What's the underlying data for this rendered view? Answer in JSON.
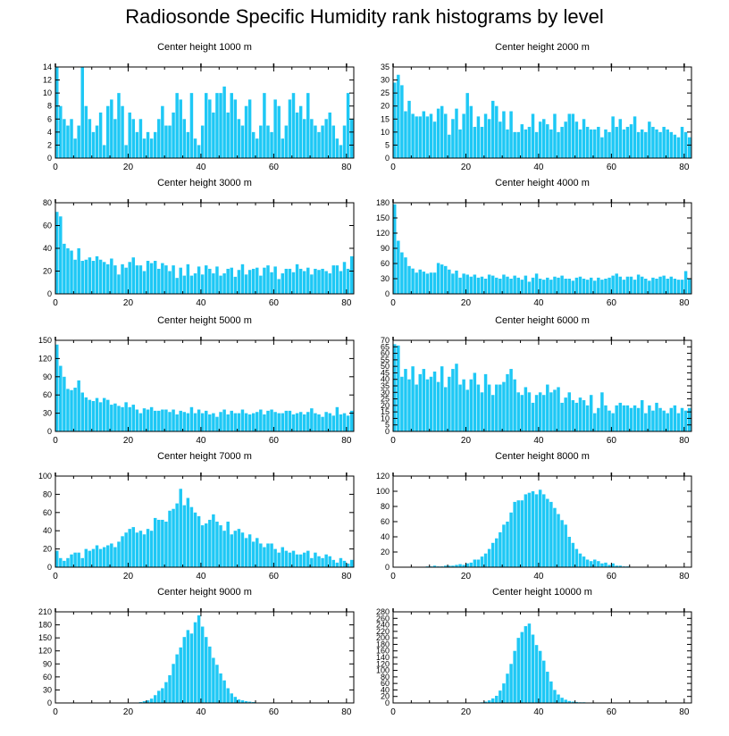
{
  "figure_title": "Radiosonde Specific Humidity rank histograms by level",
  "chart_data": [
    {
      "type": "bar",
      "title": "Center height 1000 m",
      "xlim": [
        0,
        82
      ],
      "ylim": [
        0,
        14
      ],
      "xticks": [
        0,
        20,
        40,
        60,
        80
      ],
      "yticks": [
        0,
        2,
        4,
        6,
        8,
        10,
        12,
        14
      ],
      "bar_color": "#1ec8f5",
      "values": [
        14,
        8,
        6,
        5,
        6,
        3,
        5,
        14,
        8,
        6,
        4,
        5,
        7,
        2,
        8,
        9,
        6,
        10,
        8,
        2,
        7,
        6,
        4,
        6,
        3,
        4,
        3,
        4,
        6,
        8,
        5,
        5,
        7,
        10,
        9,
        6,
        4,
        10,
        3,
        2,
        5,
        10,
        9,
        7,
        10,
        10,
        11,
        7,
        10,
        9,
        6,
        5,
        8,
        9,
        4,
        3,
        5,
        10,
        5,
        4,
        9,
        8,
        3,
        5,
        9,
        10,
        7,
        8,
        6,
        10,
        6,
        5,
        4,
        5,
        6,
        7,
        5,
        3,
        2,
        5,
        10,
        6,
        2
      ],
      "start_x": 0
    },
    {
      "type": "bar",
      "title": "Center height 2000 m",
      "xlim": [
        0,
        82
      ],
      "ylim": [
        0,
        35
      ],
      "xticks": [
        0,
        20,
        40,
        60,
        80
      ],
      "yticks": [
        0,
        5,
        10,
        15,
        20,
        25,
        30,
        35
      ],
      "bar_color": "#1ec8f5",
      "values": [
        29,
        32,
        28,
        18,
        22,
        17,
        16,
        16,
        18,
        16,
        17,
        14,
        19,
        20,
        17,
        9,
        15,
        19,
        11,
        17,
        25,
        20,
        12,
        16,
        12,
        17,
        15,
        22,
        20,
        14,
        18,
        11,
        18,
        10,
        10,
        13,
        11,
        12,
        17,
        10,
        14,
        15,
        13,
        11,
        17,
        10,
        12,
        14,
        17,
        17,
        14,
        11,
        15,
        12,
        11,
        11,
        12,
        8,
        11,
        10,
        16,
        12,
        15,
        11,
        12,
        13,
        16,
        10,
        11,
        10,
        14,
        12,
        11,
        10,
        12,
        11,
        10,
        9,
        8,
        12,
        10,
        8,
        6
      ],
      "start_x": 0
    },
    {
      "type": "bar",
      "title": "Center height 3000 m",
      "xlim": [
        0,
        82
      ],
      "ylim": [
        0,
        80
      ],
      "xticks": [
        0,
        20,
        40,
        60,
        80
      ],
      "yticks": [
        0,
        20,
        40,
        60,
        80
      ],
      "bar_color": "#1ec8f5",
      "values": [
        72,
        68,
        44,
        40,
        38,
        30,
        40,
        29,
        30,
        32,
        29,
        33,
        30,
        28,
        26,
        31,
        25,
        17,
        26,
        23,
        28,
        32,
        25,
        25,
        20,
        29,
        27,
        29,
        22,
        27,
        25,
        20,
        25,
        14,
        23,
        16,
        26,
        16,
        18,
        24,
        17,
        25,
        22,
        18,
        24,
        16,
        18,
        22,
        23,
        15,
        21,
        26,
        17,
        21,
        22,
        23,
        16,
        23,
        25,
        19,
        24,
        13,
        18,
        22,
        22,
        19,
        26,
        22,
        20,
        23,
        17,
        22,
        21,
        22,
        20,
        18,
        25,
        25,
        20,
        28,
        22,
        33,
        34
      ],
      "start_x": 0
    },
    {
      "type": "bar",
      "title": "Center height 4000 m",
      "xlim": [
        0,
        82
      ],
      "ylim": [
        0,
        180
      ],
      "xticks": [
        0,
        20,
        40,
        60,
        80
      ],
      "yticks": [
        0,
        30,
        60,
        90,
        120,
        150,
        180
      ],
      "bar_color": "#1ec8f5",
      "values": [
        177,
        105,
        82,
        72,
        55,
        50,
        42,
        48,
        44,
        40,
        42,
        42,
        61,
        58,
        55,
        48,
        40,
        46,
        32,
        40,
        38,
        34,
        38,
        32,
        34,
        30,
        38,
        36,
        32,
        30,
        38,
        34,
        30,
        36,
        32,
        28,
        36,
        24,
        32,
        40,
        30,
        28,
        32,
        28,
        34,
        32,
        36,
        30,
        30,
        26,
        32,
        34,
        30,
        28,
        32,
        26,
        32,
        28,
        30,
        32,
        36,
        40,
        34,
        28,
        34,
        34,
        28,
        38,
        34,
        30,
        26,
        32,
        30,
        34,
        36,
        30,
        34,
        30,
        28,
        28,
        45,
        30,
        36
      ],
      "start_x": 0
    },
    {
      "type": "bar",
      "title": "Center height 5000 m",
      "xlim": [
        0,
        82
      ],
      "ylim": [
        0,
        150
      ],
      "xticks": [
        0,
        20,
        40,
        60,
        80
      ],
      "yticks": [
        0,
        30,
        60,
        90,
        120,
        150
      ],
      "bar_color": "#1ec8f5",
      "values": [
        143,
        108,
        90,
        70,
        68,
        72,
        84,
        64,
        56,
        52,
        50,
        55,
        48,
        55,
        52,
        44,
        46,
        42,
        40,
        48,
        40,
        44,
        36,
        30,
        38,
        36,
        40,
        34,
        34,
        36,
        36,
        32,
        36,
        28,
        34,
        32,
        30,
        40,
        30,
        36,
        30,
        34,
        28,
        30,
        24,
        32,
        36,
        28,
        34,
        30,
        30,
        36,
        30,
        28,
        30,
        32,
        36,
        28,
        34,
        36,
        32,
        30,
        30,
        34,
        34,
        28,
        30,
        32,
        28,
        32,
        38,
        30,
        28,
        24,
        32,
        30,
        26,
        40,
        28,
        30,
        26,
        34,
        30
      ],
      "start_x": 0
    },
    {
      "type": "bar",
      "title": "Center height 6000 m",
      "xlim": [
        0,
        82
      ],
      "ylim": [
        0,
        70
      ],
      "xticks": [
        0,
        20,
        40,
        60,
        80
      ],
      "yticks": [
        0,
        5,
        10,
        15,
        20,
        25,
        30,
        35,
        40,
        45,
        50,
        55,
        60,
        65,
        70
      ],
      "bar_color": "#1ec8f5",
      "values": [
        67,
        66,
        42,
        48,
        40,
        50,
        36,
        44,
        48,
        40,
        42,
        46,
        38,
        50,
        34,
        42,
        48,
        52,
        36,
        40,
        32,
        40,
        45,
        36,
        30,
        44,
        36,
        28,
        36,
        36,
        38,
        44,
        48,
        40,
        30,
        28,
        34,
        30,
        22,
        28,
        30,
        28,
        36,
        30,
        32,
        34,
        22,
        26,
        30,
        24,
        22,
        26,
        24,
        20,
        28,
        14,
        18,
        30,
        20,
        16,
        14,
        20,
        22,
        20,
        20,
        18,
        20,
        18,
        24,
        14,
        20,
        16,
        22,
        18,
        16,
        14,
        18,
        20,
        14,
        18,
        16,
        18,
        18
      ],
      "start_x": 0
    },
    {
      "type": "bar",
      "title": "Center height 7000 m",
      "xlim": [
        0,
        82
      ],
      "ylim": [
        0,
        100
      ],
      "xticks": [
        0,
        20,
        40,
        60,
        80
      ],
      "yticks": [
        0,
        20,
        40,
        60,
        80,
        100
      ],
      "bar_color": "#1ec8f5",
      "values": [
        18,
        10,
        7,
        10,
        14,
        16,
        16,
        10,
        20,
        18,
        20,
        24,
        20,
        22,
        24,
        26,
        22,
        28,
        34,
        38,
        42,
        44,
        38,
        40,
        36,
        42,
        40,
        54,
        52,
        52,
        50,
        62,
        64,
        70,
        86,
        68,
        76,
        66,
        60,
        56,
        46,
        48,
        52,
        58,
        50,
        46,
        40,
        50,
        36,
        40,
        42,
        38,
        32,
        36,
        28,
        32,
        26,
        22,
        26,
        26,
        20,
        16,
        22,
        18,
        16,
        18,
        14,
        14,
        16,
        18,
        10,
        16,
        12,
        10,
        14,
        12,
        8,
        5,
        10,
        7,
        4,
        8,
        2
      ],
      "start_x": 0
    },
    {
      "type": "bar",
      "title": "Center height 8000 m",
      "xlim": [
        0,
        82
      ],
      "ylim": [
        0,
        120
      ],
      "xticks": [
        0,
        20,
        40,
        60,
        80
      ],
      "yticks": [
        0,
        20,
        40,
        60,
        80,
        100,
        120
      ],
      "bar_color": "#1ec8f5",
      "values": [
        0,
        0,
        0,
        0,
        0,
        0,
        0,
        0,
        0,
        1,
        1,
        2,
        1,
        1,
        2,
        2,
        2,
        3,
        4,
        3,
        5,
        6,
        10,
        10,
        14,
        18,
        24,
        32,
        38,
        46,
        56,
        60,
        72,
        86,
        88,
        88,
        96,
        98,
        100,
        96,
        102,
        96,
        90,
        86,
        78,
        70,
        62,
        56,
        40,
        32,
        24,
        18,
        14,
        10,
        8,
        10,
        8,
        5,
        6,
        3,
        5,
        2,
        2,
        1,
        1,
        0,
        0,
        0,
        0,
        0,
        0,
        0,
        0,
        0,
        0,
        0,
        0,
        0,
        0,
        0,
        0,
        0,
        0
      ],
      "start_x": 0
    },
    {
      "type": "bar",
      "title": "Center height 9000 m",
      "xlim": [
        0,
        82
      ],
      "ylim": [
        0,
        210
      ],
      "xticks": [
        0,
        20,
        40,
        60,
        80
      ],
      "yticks": [
        0,
        30,
        60,
        90,
        120,
        150,
        180,
        210
      ],
      "bar_color": "#1ec8f5",
      "values": [
        0,
        0,
        0,
        0,
        0,
        0,
        0,
        0,
        0,
        0,
        0,
        0,
        0,
        0,
        0,
        0,
        0,
        0,
        0,
        0,
        0,
        0,
        1,
        2,
        4,
        6,
        10,
        18,
        28,
        34,
        48,
        64,
        90,
        112,
        128,
        152,
        168,
        160,
        186,
        202,
        176,
        152,
        130,
        104,
        88,
        68,
        52,
        34,
        22,
        14,
        8,
        6,
        4,
        3,
        2,
        1,
        1,
        1,
        0,
        1,
        0,
        0,
        0,
        0,
        0,
        0,
        0,
        0,
        0,
        0,
        0,
        0,
        0,
        0,
        0,
        0,
        0,
        0,
        0,
        0,
        0,
        0,
        0
      ],
      "start_x": 0
    },
    {
      "type": "bar",
      "title": "Center height 10000 m",
      "xlim": [
        0,
        82
      ],
      "ylim": [
        0,
        280
      ],
      "xticks": [
        0,
        20,
        40,
        60,
        80
      ],
      "yticks": [
        0,
        20,
        40,
        60,
        80,
        100,
        120,
        140,
        160,
        180,
        200,
        220,
        240,
        260,
        280
      ],
      "bar_color": "#1ec8f5",
      "values": [
        0,
        0,
        0,
        0,
        0,
        0,
        0,
        0,
        0,
        0,
        0,
        0,
        0,
        0,
        0,
        0,
        0,
        0,
        0,
        0,
        0,
        0,
        0,
        1,
        2,
        4,
        8,
        14,
        22,
        38,
        60,
        90,
        120,
        160,
        200,
        218,
        236,
        244,
        210,
        178,
        160,
        130,
        96,
        66,
        40,
        26,
        16,
        10,
        6,
        4,
        3,
        2,
        2,
        1,
        1,
        1,
        1,
        0,
        0,
        0,
        0,
        0,
        0,
        0,
        0,
        0,
        0,
        0,
        0,
        0,
        0,
        0,
        0,
        0,
        0,
        0,
        0,
        0,
        0,
        0,
        0,
        0,
        0
      ],
      "start_x": 0
    }
  ]
}
